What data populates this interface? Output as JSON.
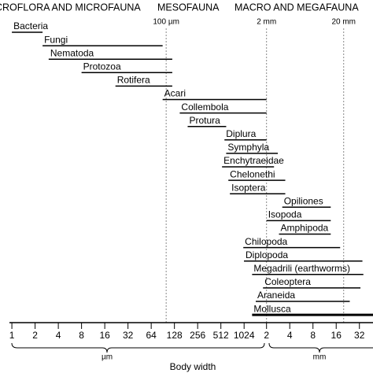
{
  "chart_data": {
    "type": "range",
    "headers": [
      "CROFLORA AND MICROFAUNA",
      "MESOFAUNA",
      "MACRO AND MEGAFAUNA"
    ],
    "markers": [
      {
        "value": 100,
        "label": "100 µm"
      },
      {
        "value": 2000,
        "label": "2 mm"
      },
      {
        "value": 20000,
        "label": "20 mm"
      }
    ],
    "categories": [
      "Bacteria",
      "Fungi",
      "Nematoda",
      "Protozoa",
      "Rotifera",
      "Acari",
      "Collembola",
      "Protura",
      "Diplura",
      "Symphyla",
      "Enchytraeidae",
      "Chelonethi",
      "Isoptera",
      "Opiliones",
      "Isopoda",
      "Amphipoda",
      "Chilopoda",
      "Diplopoda",
      "Megadrili (earthworms)",
      "Coleoptera",
      "Araneida",
      "Mollusca"
    ],
    "ranges": [
      [
        1,
        2.5
      ],
      [
        2.5,
        90
      ],
      [
        3,
        120
      ],
      [
        8,
        120
      ],
      [
        22,
        120
      ],
      [
        90,
        2000
      ],
      [
        150,
        2000
      ],
      [
        190,
        600
      ],
      [
        570,
        2000
      ],
      [
        600,
        2800
      ],
      [
        530,
        2500
      ],
      [
        640,
        3500
      ],
      [
        670,
        3500
      ],
      [
        3200,
        13600
      ],
      [
        2000,
        13600
      ],
      [
        2900,
        13600
      ],
      [
        1000,
        18000
      ],
      [
        1020,
        35000
      ],
      [
        1300,
        36000
      ],
      [
        1800,
        33000
      ],
      [
        1450,
        24000
      ],
      [
        1300,
        48000
      ]
    ],
    "color": "#000000",
    "log_x": true,
    "xlim": [
      0.93,
      48000
    ],
    "xticks": [
      1,
      2,
      4,
      8,
      16,
      32,
      64,
      128,
      256,
      512,
      1024,
      {
        "value": 2000,
        "label": "2"
      },
      {
        "value": 4000,
        "label": "4"
      },
      {
        "value": 8000,
        "label": "8"
      },
      {
        "value": 16000,
        "label": "16"
      },
      {
        "value": 32000,
        "label": "32"
      }
    ],
    "x_units": [
      "µm",
      "mm"
    ],
    "xlabel": "Body width"
  }
}
